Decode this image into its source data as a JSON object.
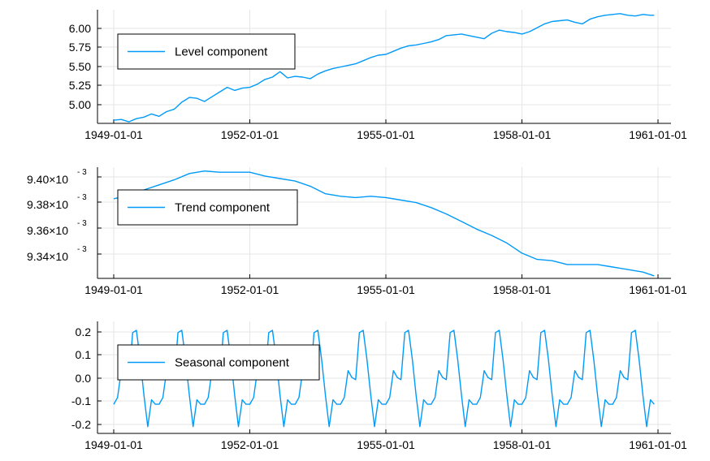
{
  "colors": {
    "series": "#009af9",
    "grid": "#e6e6e6",
    "axis": "#000000"
  },
  "chart_data": [
    {
      "type": "line",
      "series": [
        {
          "name": "Level component"
        }
      ],
      "x_ticks": [
        "1949-01-01",
        "1952-01-01",
        "1955-01-01",
        "1958-01-01",
        "1961-01-01"
      ],
      "y_ticks": [
        "6.00",
        "5.75",
        "5.50",
        "5.25",
        "5.00"
      ],
      "y_tick_values": [
        6.0,
        5.75,
        5.5,
        5.25,
        5.0
      ],
      "x_range": [
        "1949-01-01",
        "1961-01-01"
      ],
      "ylim": [
        4.8,
        6.25
      ],
      "legend": "top-left",
      "grid": true,
      "x": [
        "1949-01-01",
        "1949-03-01",
        "1949-05-01",
        "1949-07-01",
        "1949-09-01",
        "1949-11-01",
        "1950-01-01",
        "1950-03-01",
        "1950-05-01",
        "1950-07-01",
        "1950-09-01",
        "1950-11-01",
        "1951-01-01",
        "1951-03-01",
        "1951-05-01",
        "1951-07-01",
        "1951-09-01",
        "1951-11-01",
        "1952-01-01",
        "1952-03-01",
        "1952-05-01",
        "1952-07-01",
        "1952-09-01",
        "1952-11-01",
        "1953-01-01",
        "1953-03-01",
        "1953-05-01",
        "1953-07-01",
        "1953-09-01",
        "1953-11-01",
        "1954-01-01",
        "1954-03-01",
        "1954-05-01",
        "1954-07-01",
        "1954-09-01",
        "1954-11-01",
        "1955-01-01",
        "1955-03-01",
        "1955-05-01",
        "1955-07-01",
        "1955-09-01",
        "1955-11-01",
        "1956-01-01",
        "1956-03-01",
        "1956-05-01",
        "1956-07-01",
        "1956-09-01",
        "1956-11-01",
        "1957-01-01",
        "1957-03-01",
        "1957-05-01",
        "1957-07-01",
        "1957-09-01",
        "1957-11-01",
        "1958-01-01",
        "1958-03-01",
        "1958-05-01",
        "1958-07-01",
        "1958-09-01",
        "1958-11-01",
        "1959-01-01",
        "1959-03-01",
        "1959-05-01",
        "1959-07-01",
        "1959-09-01",
        "1959-11-01",
        "1960-01-01",
        "1960-03-01",
        "1960-05-01",
        "1960-07-01",
        "1960-09-01",
        "1960-11-01",
        "1960-12-01"
      ],
      "values": [
        4.84,
        4.85,
        4.82,
        4.86,
        4.88,
        4.92,
        4.89,
        4.95,
        4.98,
        5.07,
        5.13,
        5.12,
        5.08,
        5.14,
        5.2,
        5.26,
        5.22,
        5.25,
        5.26,
        5.3,
        5.36,
        5.39,
        5.46,
        5.38,
        5.4,
        5.39,
        5.37,
        5.43,
        5.47,
        5.5,
        5.52,
        5.54,
        5.56,
        5.6,
        5.64,
        5.67,
        5.68,
        5.72,
        5.76,
        5.79,
        5.8,
        5.82,
        5.84,
        5.87,
        5.92,
        5.93,
        5.94,
        5.92,
        5.9,
        5.88,
        5.95,
        5.99,
        5.97,
        5.96,
        5.94,
        5.97,
        6.02,
        6.07,
        6.1,
        6.11,
        6.12,
        6.09,
        6.07,
        6.13,
        6.16,
        6.18,
        6.19,
        6.2,
        6.18,
        6.17,
        6.19,
        6.18,
        6.18
      ]
    },
    {
      "type": "line",
      "series": [
        {
          "name": "Trend component"
        }
      ],
      "x_ticks": [
        "1949-01-01",
        "1952-01-01",
        "1955-01-01",
        "1958-01-01",
        "1961-01-01"
      ],
      "y_ticks": [
        {
          "mantissa": "9.40×10",
          "exp": "- 3"
        },
        {
          "mantissa": "9.38×10",
          "exp": "- 3"
        },
        {
          "mantissa": "9.36×10",
          "exp": "- 3"
        },
        {
          "mantissa": "9.34×10",
          "exp": "- 3"
        }
      ],
      "y_tick_values": [
        0.0094,
        0.00938,
        0.00936,
        0.00934
      ],
      "x_range": [
        "1949-01-01",
        "1961-01-01"
      ],
      "ylim": [
        0.009322,
        0.00941
      ],
      "legend": "top-left",
      "grid": true,
      "x": [
        "1949-01-01",
        "1949-05-01",
        "1949-09-01",
        "1950-01-01",
        "1950-05-01",
        "1950-09-01",
        "1951-01-01",
        "1951-05-01",
        "1951-09-01",
        "1952-01-01",
        "1952-05-01",
        "1952-09-01",
        "1953-01-01",
        "1953-05-01",
        "1953-09-01",
        "1954-01-01",
        "1954-05-01",
        "1954-09-01",
        "1955-01-01",
        "1955-05-01",
        "1955-09-01",
        "1956-01-01",
        "1956-05-01",
        "1956-09-01",
        "1957-01-01",
        "1957-05-01",
        "1957-09-01",
        "1958-01-01",
        "1958-05-01",
        "1958-09-01",
        "1959-01-01",
        "1959-05-01",
        "1959-09-01",
        "1960-01-01",
        "1960-05-01",
        "1960-09-01",
        "1960-12-01"
      ],
      "values": [
        0.009385,
        0.009388,
        0.009392,
        0.009396,
        0.0094,
        0.009405,
        0.009407,
        0.009406,
        0.009406,
        0.009406,
        0.009403,
        0.009401,
        0.009399,
        0.009395,
        0.009389,
        0.009387,
        0.009386,
        0.009387,
        0.009386,
        0.009384,
        0.009382,
        0.009378,
        0.009373,
        0.009367,
        0.009361,
        0.009356,
        0.00935,
        0.009342,
        0.009337,
        0.009336,
        0.009333,
        0.009333,
        0.009333,
        0.009331,
        0.009329,
        0.009327,
        0.009324
      ]
    },
    {
      "type": "line",
      "series": [
        {
          "name": "Seasonal component"
        }
      ],
      "x_ticks": [
        "1949-01-01",
        "1952-01-01",
        "1955-01-01",
        "1958-01-01",
        "1961-01-01"
      ],
      "y_ticks": [
        "0.2",
        "0.1",
        "0.0",
        "-0.1",
        "-0.2"
      ],
      "y_tick_values": [
        0.2,
        0.1,
        0.0,
        -0.1,
        -0.2
      ],
      "x_range": [
        "1949-01-01",
        "1961-01-01"
      ],
      "ylim": [
        -0.25,
        0.25
      ],
      "legend": "top-left",
      "grid": true,
      "monthly_pattern": [
        -0.12,
        -0.09,
        0.03,
        0.0,
        -0.01,
        0.2,
        0.21,
        0.08,
        -0.08,
        -0.22,
        -0.1,
        -0.12
      ],
      "start": "1949-01-01",
      "months": 144
    }
  ]
}
